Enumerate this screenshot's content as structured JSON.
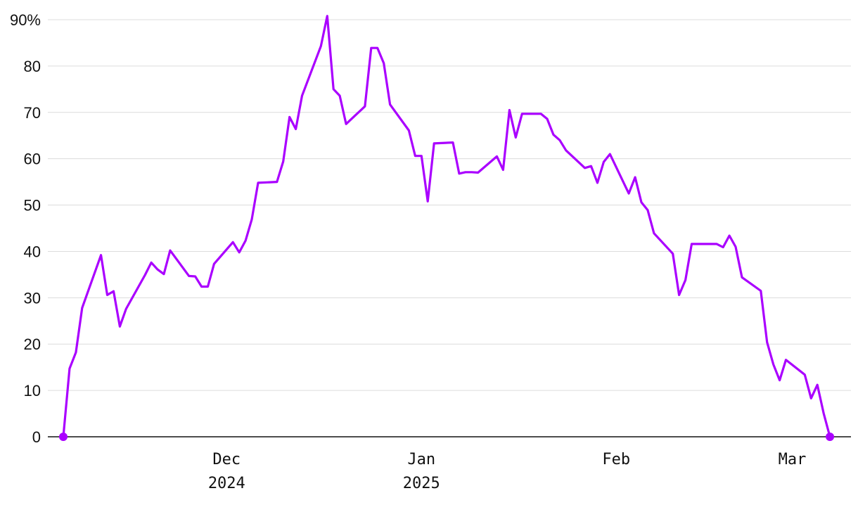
{
  "chart_data": {
    "type": "line",
    "y_unit_suffix": "%",
    "ylim": [
      0,
      90
    ],
    "y_ticks": [
      0,
      10,
      20,
      30,
      40,
      50,
      60,
      70,
      80,
      90
    ],
    "xlim": [
      "2024-11-05",
      "2025-03-08"
    ],
    "x_ticks": [
      {
        "date": "2024-12-01",
        "label": "Dec",
        "sublabel": "2024"
      },
      {
        "date": "2025-01-01",
        "label": "Jan",
        "sublabel": "2025"
      },
      {
        "date": "2025-02-01",
        "label": "Feb",
        "sublabel": ""
      },
      {
        "date": "2025-03-01",
        "label": "Mar",
        "sublabel": ""
      }
    ],
    "grid": true,
    "line_color": "#aa00ff",
    "series": [
      {
        "values": [
          [
            "2024-11-05",
            0
          ],
          [
            "2024-11-06",
            14.7
          ],
          [
            "2024-11-07",
            18.2
          ],
          [
            "2024-11-08",
            27.8
          ],
          [
            "2024-11-11",
            39.2
          ],
          [
            "2024-11-12",
            30.6
          ],
          [
            "2024-11-13",
            31.4
          ],
          [
            "2024-11-14",
            23.8
          ],
          [
            "2024-11-15",
            27.6
          ],
          [
            "2024-11-18",
            34.9
          ],
          [
            "2024-11-19",
            37.6
          ],
          [
            "2024-11-20",
            36.1
          ],
          [
            "2024-11-21",
            35.1
          ],
          [
            "2024-11-22",
            40.2
          ],
          [
            "2024-11-25",
            34.7
          ],
          [
            "2024-11-26",
            34.6
          ],
          [
            "2024-11-27",
            32.4
          ],
          [
            "2024-11-28",
            32.4
          ],
          [
            "2024-11-29",
            37.3
          ],
          [
            "2024-12-02",
            42.0
          ],
          [
            "2024-12-03",
            39.8
          ],
          [
            "2024-12-04",
            42.3
          ],
          [
            "2024-12-05",
            46.9
          ],
          [
            "2024-12-06",
            54.8
          ],
          [
            "2024-12-09",
            55.0
          ],
          [
            "2024-12-10",
            59.4
          ],
          [
            "2024-12-11",
            69.0
          ],
          [
            "2024-12-12",
            66.4
          ],
          [
            "2024-12-13",
            73.6
          ],
          [
            "2024-12-16",
            84.3
          ],
          [
            "2024-12-17",
            90.8
          ],
          [
            "2024-12-18",
            75.0
          ],
          [
            "2024-12-19",
            73.6
          ],
          [
            "2024-12-20",
            67.5
          ],
          [
            "2024-12-23",
            71.3
          ],
          [
            "2024-12-24",
            83.9
          ],
          [
            "2024-12-25",
            83.9
          ],
          [
            "2024-12-26",
            80.6
          ],
          [
            "2024-12-27",
            71.7
          ],
          [
            "2024-12-30",
            66.1
          ],
          [
            "2024-12-31",
            60.6
          ],
          [
            "2025-01-01",
            60.6
          ],
          [
            "2025-01-02",
            50.8
          ],
          [
            "2025-01-03",
            63.3
          ],
          [
            "2025-01-06",
            63.5
          ],
          [
            "2025-01-07",
            56.8
          ],
          [
            "2025-01-08",
            57.1
          ],
          [
            "2025-01-09",
            57.1
          ],
          [
            "2025-01-10",
            57.0
          ],
          [
            "2025-01-13",
            60.5
          ],
          [
            "2025-01-14",
            57.6
          ],
          [
            "2025-01-15",
            70.5
          ],
          [
            "2025-01-16",
            64.6
          ],
          [
            "2025-01-17",
            69.7
          ],
          [
            "2025-01-20",
            69.7
          ],
          [
            "2025-01-21",
            68.6
          ],
          [
            "2025-01-22",
            65.2
          ],
          [
            "2025-01-23",
            64.0
          ],
          [
            "2025-01-24",
            61.8
          ],
          [
            "2025-01-27",
            58.0
          ],
          [
            "2025-01-28",
            58.4
          ],
          [
            "2025-01-29",
            54.8
          ],
          [
            "2025-01-30",
            59.3
          ],
          [
            "2025-01-31",
            61.0
          ],
          [
            "2025-02-03",
            52.5
          ],
          [
            "2025-02-04",
            56.0
          ],
          [
            "2025-02-05",
            50.6
          ],
          [
            "2025-02-06",
            48.9
          ],
          [
            "2025-02-07",
            43.9
          ],
          [
            "2025-02-10",
            39.5
          ],
          [
            "2025-02-11",
            30.6
          ],
          [
            "2025-02-12",
            33.8
          ],
          [
            "2025-02-13",
            41.6
          ],
          [
            "2025-02-17",
            41.6
          ],
          [
            "2025-02-18",
            40.9
          ],
          [
            "2025-02-19",
            43.4
          ],
          [
            "2025-02-20",
            41.0
          ],
          [
            "2025-02-21",
            34.4
          ],
          [
            "2025-02-24",
            31.5
          ],
          [
            "2025-02-25",
            20.4
          ],
          [
            "2025-02-26",
            15.6
          ],
          [
            "2025-02-27",
            12.2
          ],
          [
            "2025-02-28",
            16.6
          ],
          [
            "2025-03-03",
            13.4
          ],
          [
            "2025-03-04",
            8.3
          ],
          [
            "2025-03-05",
            11.2
          ],
          [
            "2025-03-06",
            5.1
          ],
          [
            "2025-03-07",
            0
          ]
        ]
      }
    ],
    "endpoints": [
      "2024-11-05",
      "2025-03-07"
    ]
  }
}
